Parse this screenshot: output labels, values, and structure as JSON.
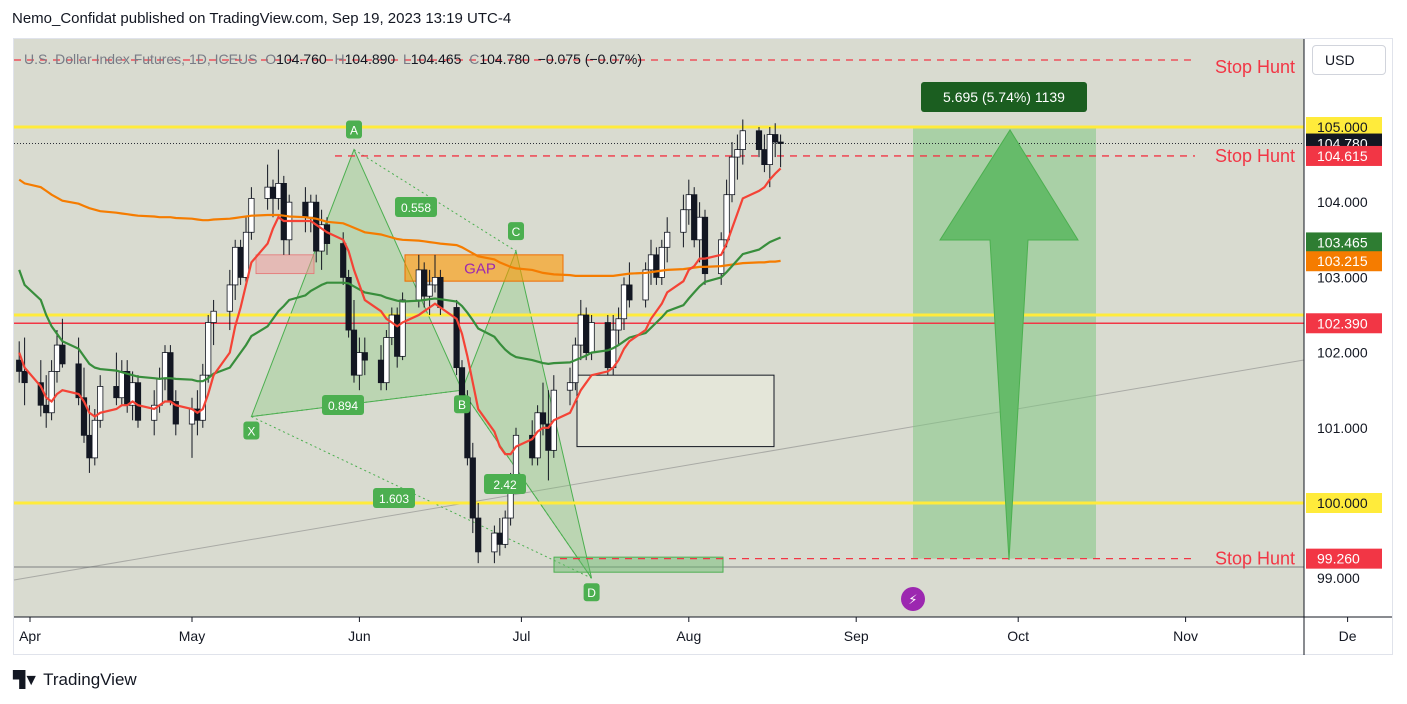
{
  "header": {
    "publisher": "Nemo_Confidat published on TradingView.com, Sep 19, 2023 13:19 UTC-4"
  },
  "footer": {
    "brand": "TradingView"
  },
  "toolbar": {
    "currency": "USD"
  },
  "ohlc": {
    "symbol": "U.S. Dollar Index Futures, 1D, ICEUS",
    "open_label": "O",
    "open": "104.760",
    "high_label": "H",
    "high": "104.890",
    "low_label": "L",
    "low": "104.465",
    "close_label": "C",
    "close": "104.780",
    "change": "−0.075 (−0.07%)"
  },
  "chart_data": {
    "type": "candlestick",
    "y_range": [
      98.5,
      106.0
    ],
    "x_tick_labels": [
      "Apr",
      "May",
      "Jun",
      "Jul",
      "Aug",
      "Sep",
      "Oct",
      "Nov",
      "De"
    ],
    "y_tick_labels": [
      "99.000",
      "101.000",
      "102.000",
      "103.000",
      "104.000"
    ],
    "price_labels": [
      {
        "value": 105.0,
        "text": "105.000",
        "bg": "#ffeb3b",
        "fg": "#131722"
      },
      {
        "value": 104.78,
        "text": "104.780",
        "bg": "#131722",
        "fg": "#ffffff"
      },
      {
        "value": 104.615,
        "text": "104.615",
        "bg": "#f23645",
        "fg": "#ffffff"
      },
      {
        "value": 103.465,
        "text": "103.465",
        "bg": "#2e7d32",
        "fg": "#ffffff"
      },
      {
        "value": 103.215,
        "text": "103.215",
        "bg": "#f57c00",
        "fg": "#ffffff"
      },
      {
        "value": 102.39,
        "text": "102.390",
        "bg": "#f23645",
        "fg": "#ffffff"
      },
      {
        "value": 100.0,
        "text": "100.000",
        "bg": "#ffeb3b",
        "fg": "#131722"
      },
      {
        "value": 99.26,
        "text": "99.260",
        "bg": "#f23645",
        "fg": "#ffffff"
      }
    ],
    "horizontal_levels": [
      {
        "value": 105.0,
        "color": "#ffeb3b",
        "style": "solid"
      },
      {
        "value": 100.0,
        "color": "#ffeb3b",
        "style": "solid"
      },
      {
        "value": 102.39,
        "color": "#f23645",
        "style": "solid"
      },
      {
        "value": 102.5,
        "color": "#ffeb3b",
        "style": "solid"
      }
    ],
    "stop_hunt_labels": [
      {
        "text": "Stop Hunt",
        "value": 105.8
      },
      {
        "text": "Stop Hunt",
        "value": 104.615
      },
      {
        "text": "Stop Hunt",
        "value": 99.26
      }
    ],
    "pattern_points": [
      {
        "label": "X",
        "date": "2023-05-12",
        "value": 101.15
      },
      {
        "label": "A",
        "date": "2023-05-31",
        "value": 104.7
      },
      {
        "label": "B",
        "date": "2023-06-20",
        "value": 101.5
      },
      {
        "label": "C",
        "date": "2023-06-30",
        "value": 103.35
      },
      {
        "label": "D",
        "date": "2023-07-14",
        "value": 99.0
      }
    ],
    "ratio_labels": [
      "0.558",
      "0.894",
      "1.603",
      "2.42"
    ],
    "annotations": {
      "gap": "GAP",
      "target": "5.695 (5.74%) 1139"
    },
    "candles": [
      [
        101.9,
        102.15,
        101.6,
        101.75
      ],
      [
        101.75,
        102.2,
        101.3,
        101.6
      ],
      [
        101.6,
        101.9,
        101.15,
        101.3
      ],
      [
        101.3,
        101.7,
        101.0,
        101.2
      ],
      [
        101.2,
        101.9,
        101.1,
        101.75
      ],
      [
        101.75,
        102.3,
        101.6,
        102.1
      ],
      [
        102.1,
        102.45,
        101.8,
        101.85
      ],
      [
        101.85,
        102.2,
        101.3,
        101.4
      ],
      [
        101.4,
        101.8,
        100.8,
        100.9
      ],
      [
        100.9,
        101.3,
        100.4,
        100.6
      ],
      [
        100.6,
        101.25,
        100.5,
        101.1
      ],
      [
        101.1,
        101.7,
        101.0,
        101.55
      ],
      [
        101.55,
        102.0,
        101.3,
        101.4
      ],
      [
        101.4,
        101.9,
        101.3,
        101.75
      ],
      [
        101.75,
        101.9,
        101.2,
        101.3
      ],
      [
        101.3,
        101.75,
        101.1,
        101.6
      ],
      [
        101.6,
        101.7,
        101.0,
        101.1
      ],
      [
        101.1,
        101.5,
        100.9,
        101.3
      ],
      [
        101.3,
        101.8,
        101.2,
        101.65
      ],
      [
        101.65,
        102.1,
        101.5,
        102.0
      ],
      [
        102.0,
        102.1,
        101.3,
        101.35
      ],
      [
        101.35,
        101.5,
        100.9,
        101.05
      ],
      [
        101.05,
        101.4,
        100.6,
        101.25
      ],
      [
        101.25,
        101.5,
        100.9,
        101.1
      ],
      [
        101.1,
        101.85,
        101.0,
        101.7
      ],
      [
        101.7,
        102.5,
        101.6,
        102.4
      ],
      [
        102.4,
        102.7,
        102.1,
        102.55
      ],
      [
        102.55,
        103.1,
        102.3,
        102.9
      ],
      [
        102.9,
        103.5,
        102.7,
        103.4
      ],
      [
        103.4,
        103.5,
        102.9,
        103.0
      ],
      [
        103.0,
        103.8,
        102.9,
        103.6
      ],
      [
        103.6,
        104.2,
        103.5,
        104.05
      ],
      [
        104.05,
        104.5,
        103.9,
        104.2
      ],
      [
        104.2,
        104.3,
        103.8,
        104.05
      ],
      [
        104.05,
        104.7,
        103.9,
        104.25
      ],
      [
        104.25,
        104.35,
        103.3,
        103.5
      ],
      [
        103.5,
        104.1,
        103.3,
        104.0
      ],
      [
        104.0,
        104.2,
        103.6,
        103.8
      ],
      [
        103.8,
        104.1,
        103.6,
        104.0
      ],
      [
        104.0,
        104.1,
        103.2,
        103.35
      ],
      [
        103.35,
        103.9,
        103.1,
        103.7
      ],
      [
        103.7,
        103.8,
        103.3,
        103.45
      ],
      [
        103.45,
        103.6,
        102.9,
        103.0
      ],
      [
        103.0,
        103.1,
        102.2,
        102.3
      ],
      [
        102.3,
        102.7,
        101.6,
        101.7
      ],
      [
        101.7,
        102.2,
        101.5,
        102.0
      ],
      [
        102.0,
        102.2,
        101.7,
        101.9
      ],
      [
        101.9,
        102.1,
        101.5,
        101.6
      ],
      [
        101.6,
        102.3,
        101.5,
        102.2
      ],
      [
        102.2,
        102.6,
        102.1,
        102.5
      ],
      [
        102.5,
        102.6,
        101.8,
        101.95
      ],
      [
        101.95,
        102.8,
        101.9,
        102.7
      ],
      [
        102.7,
        103.3,
        102.6,
        103.1
      ],
      [
        103.1,
        103.2,
        102.6,
        102.75
      ],
      [
        102.75,
        103.1,
        102.5,
        102.9
      ],
      [
        102.9,
        103.3,
        102.8,
        103.0
      ],
      [
        103.0,
        103.1,
        102.5,
        102.6
      ],
      [
        102.6,
        102.7,
        101.7,
        101.8
      ],
      [
        101.8,
        101.9,
        101.3,
        101.4
      ],
      [
        101.4,
        101.5,
        100.5,
        100.6
      ],
      [
        100.6,
        100.8,
        99.6,
        99.8
      ],
      [
        99.8,
        100.0,
        99.2,
        99.35
      ],
      [
        99.35,
        99.7,
        99.2,
        99.6
      ],
      [
        99.6,
        99.8,
        99.3,
        99.45
      ],
      [
        99.45,
        99.9,
        99.4,
        99.8
      ],
      [
        99.8,
        100.4,
        99.7,
        100.3
      ],
      [
        100.3,
        101.0,
        100.2,
        100.9
      ],
      [
        100.9,
        101.1,
        100.5,
        100.6
      ],
      [
        100.6,
        101.3,
        100.5,
        101.2
      ],
      [
        101.2,
        101.6,
        100.9,
        101.05
      ],
      [
        101.05,
        101.5,
        100.3,
        100.7
      ],
      [
        100.7,
        101.7,
        100.6,
        101.5
      ],
      [
        101.5,
        101.8,
        101.3,
        101.6
      ],
      [
        101.6,
        102.2,
        101.5,
        102.1
      ],
      [
        102.1,
        102.7,
        101.9,
        102.5
      ],
      [
        102.5,
        102.6,
        101.9,
        102.0
      ],
      [
        102.0,
        102.5,
        101.9,
        102.4
      ],
      [
        102.4,
        102.5,
        101.7,
        101.8
      ],
      [
        101.8,
        102.5,
        101.7,
        102.3
      ],
      [
        102.3,
        102.6,
        102.1,
        102.45
      ],
      [
        102.45,
        103.0,
        102.3,
        102.9
      ],
      [
        102.9,
        103.2,
        102.6,
        102.7
      ],
      [
        102.7,
        103.2,
        102.6,
        103.1
      ],
      [
        103.1,
        103.5,
        102.9,
        103.3
      ],
      [
        103.3,
        103.4,
        102.9,
        103.0
      ],
      [
        103.0,
        103.5,
        102.9,
        103.4
      ],
      [
        103.4,
        103.8,
        103.2,
        103.6
      ],
      [
        103.6,
        104.1,
        103.4,
        103.9
      ],
      [
        103.9,
        104.3,
        103.7,
        104.1
      ],
      [
        104.1,
        104.2,
        103.4,
        103.5
      ],
      [
        103.5,
        104.0,
        103.2,
        103.8
      ],
      [
        103.8,
        103.9,
        102.9,
        103.05
      ],
      [
        103.05,
        103.6,
        102.9,
        103.5
      ],
      [
        103.5,
        104.3,
        103.4,
        104.1
      ],
      [
        104.1,
        104.8,
        104.0,
        104.6
      ],
      [
        104.6,
        104.9,
        104.3,
        104.7
      ],
      [
        104.7,
        105.1,
        104.5,
        104.95
      ],
      [
        104.95,
        105.0,
        104.6,
        104.7
      ],
      [
        104.7,
        104.9,
        104.4,
        104.5
      ],
      [
        104.5,
        105.0,
        104.2,
        104.9
      ],
      [
        104.9,
        105.05,
        104.6,
        104.8
      ],
      [
        104.8,
        104.9,
        104.465,
        104.78
      ]
    ],
    "ema_red": [
      102.0,
      101.8,
      101.55,
      101.4,
      101.35,
      101.45,
      101.5,
      101.45,
      101.35,
      101.2,
      101.15,
      101.2,
      101.25,
      101.3,
      101.3,
      101.35,
      101.3,
      101.25,
      101.3,
      101.35,
      101.35,
      101.3,
      101.25,
      101.2,
      101.25,
      101.45,
      101.7,
      102.0,
      102.35,
      102.6,
      102.9,
      103.2,
      103.45,
      103.65,
      103.8,
      103.75,
      103.75,
      103.75,
      103.75,
      103.7,
      103.65,
      103.6,
      103.5,
      103.35,
      103.1,
      102.9,
      102.7,
      102.55,
      102.45,
      102.4,
      102.35,
      102.4,
      102.5,
      102.55,
      102.6,
      102.65,
      102.6,
      102.45,
      102.25,
      101.95,
      101.6,
      101.25,
      100.95,
      100.75,
      100.65,
      100.65,
      100.75,
      100.85,
      100.95,
      101.0,
      101.0,
      101.1,
      101.2,
      101.35,
      101.5,
      101.6,
      101.7,
      101.75,
      101.8,
      101.9,
      102.05,
      102.15,
      102.3,
      102.45,
      102.55,
      102.65,
      102.8,
      102.95,
      103.1,
      103.15,
      103.25,
      103.25,
      103.3,
      103.45,
      103.65,
      103.85,
      104.05,
      104.15,
      104.2,
      104.3,
      104.38,
      104.45
    ],
    "ema_green": [
      103.1,
      102.9,
      102.7,
      102.5,
      102.35,
      102.25,
      102.15,
      102.05,
      101.95,
      101.85,
      101.8,
      101.78,
      101.76,
      101.74,
      101.72,
      101.7,
      101.68,
      101.66,
      101.65,
      101.66,
      101.66,
      101.65,
      101.64,
      101.62,
      101.62,
      101.66,
      101.72,
      101.8,
      101.9,
      102.0,
      102.1,
      102.22,
      102.35,
      102.45,
      102.55,
      102.62,
      102.7,
      102.76,
      102.82,
      102.86,
      102.9,
      102.93,
      102.93,
      102.92,
      102.88,
      102.84,
      102.8,
      102.76,
      102.73,
      102.71,
      102.69,
      102.68,
      102.69,
      102.7,
      102.71,
      102.72,
      102.71,
      102.68,
      102.62,
      102.53,
      102.43,
      102.32,
      102.21,
      102.12,
      102.04,
      101.98,
      101.94,
      101.9,
      101.88,
      101.86,
      101.85,
      101.86,
      101.87,
      101.9,
      101.93,
      101.96,
      102.0,
      102.03,
      102.06,
      102.1,
      102.15,
      102.2,
      102.26,
      102.33,
      102.4,
      102.47,
      102.55,
      102.63,
      102.72,
      102.8,
      102.88,
      102.94,
      103.0,
      103.07,
      103.15,
      103.23,
      103.31,
      103.37,
      103.42,
      103.47,
      103.5,
      103.53
    ],
    "ema_orange": [
      104.3,
      104.25,
      104.2,
      104.15,
      104.1,
      104.06,
      104.02,
      103.98,
      103.95,
      103.92,
      103.9,
      103.88,
      103.86,
      103.85,
      103.84,
      103.83,
      103.82,
      103.81,
      103.8,
      103.8,
      103.8,
      103.79,
      103.78,
      103.77,
      103.76,
      103.76,
      103.77,
      103.78,
      103.79,
      103.8,
      103.81,
      103.82,
      103.83,
      103.83,
      103.83,
      103.82,
      103.81,
      103.8,
      103.79,
      103.78,
      103.76,
      103.74,
      103.72,
      103.69,
      103.66,
      103.63,
      103.6,
      103.57,
      103.55,
      103.53,
      103.51,
      103.5,
      103.49,
      103.48,
      103.47,
      103.46,
      103.45,
      103.43,
      103.4,
      103.36,
      103.32,
      103.28,
      103.24,
      103.2,
      103.17,
      103.14,
      103.12,
      103.1,
      103.08,
      103.06,
      103.05,
      103.04,
      103.03,
      103.02,
      103.02,
      103.02,
      103.02,
      103.02,
      103.02,
      103.03,
      103.04,
      103.05,
      103.06,
      103.07,
      103.08,
      103.09,
      103.1,
      103.11,
      103.12,
      103.13,
      103.14,
      103.14,
      103.15,
      103.16,
      103.17,
      103.18,
      103.19,
      103.2,
      103.2,
      103.21,
      103.21,
      103.22
    ]
  }
}
